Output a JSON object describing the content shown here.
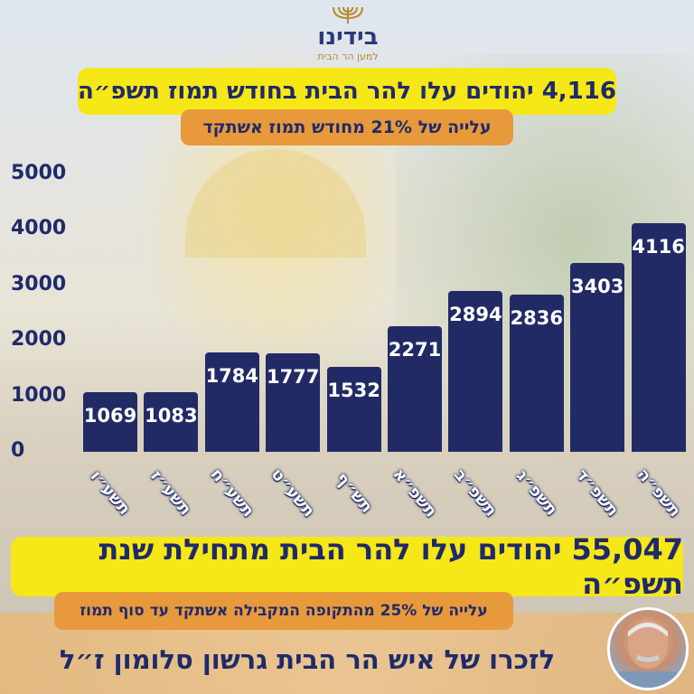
{
  "logo": {
    "brand": "בידינו",
    "tagline": "למען הר הבית"
  },
  "title": "4,116 יהודים עלו להר הבית בחודש תמוז תשפ״ה",
  "subtitle": "עלייה של 21% מחודש תמוז אשתקד",
  "chart_data": {
    "type": "bar",
    "categories": [
      "תשע״ו",
      "תשע״ז",
      "תשע״ח",
      "תשע״ט",
      "תש״ף",
      "תשפ״א",
      "תשפ״ב",
      "תשפ״ג",
      "תשפ״ד",
      "תשפ״ה"
    ],
    "values": [
      1069,
      1083,
      1784,
      1777,
      1532,
      2271,
      2894,
      2836,
      3403,
      4116
    ],
    "yticks": [
      0,
      1000,
      2000,
      3000,
      4000,
      5000
    ],
    "ylim": [
      0,
      5000
    ],
    "bar_color": "#222a66",
    "grid": false
  },
  "bottom_title": "55,047 יהודים עלו להר הבית מתחילת שנת תשפ״ה",
  "bottom_subtitle": "עלייה של 25% מהתקופה המקבילה אשתקד עד סוף תמוז",
  "memorial": "לזכרו של איש הר הבית גרשון סלומון ז״ל",
  "colors": {
    "yellow": "#f6e716",
    "orange": "#e8993c",
    "navy": "#1e2a6b"
  }
}
